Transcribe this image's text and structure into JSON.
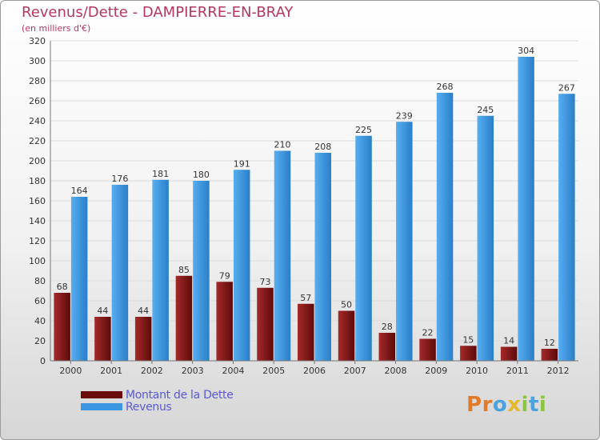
{
  "header": {
    "title": "Revenus/Dette - DAMPIERRE-EN-BRAY",
    "subtitle": "(en milliers d'€)"
  },
  "chart_data": {
    "type": "bar",
    "categories": [
      "2000",
      "2001",
      "2002",
      "2003",
      "2004",
      "2005",
      "2006",
      "2007",
      "2008",
      "2009",
      "2010",
      "2011",
      "2012"
    ],
    "series": [
      {
        "name": "Montant de la Dette",
        "color": "#8b1a1a",
        "values": [
          68,
          44,
          44,
          85,
          79,
          73,
          57,
          50,
          28,
          22,
          15,
          14,
          12
        ]
      },
      {
        "name": "Revenus",
        "color": "#3d97e0",
        "values": [
          164,
          176,
          181,
          180,
          191,
          210,
          208,
          225,
          239,
          268,
          245,
          304,
          267
        ]
      }
    ],
    "ylim": [
      0,
      320
    ],
    "yticks": [
      "0",
      "20",
      "40",
      "60",
      "80",
      "100",
      "120",
      "140",
      "160",
      "180",
      "200",
      "220",
      "240",
      "260",
      "280",
      "300",
      "320"
    ],
    "grid": true,
    "legend": "bottom-left"
  },
  "legend": {
    "items": [
      {
        "label": "Montant de la Dette",
        "color": "#6b0d0d"
      },
      {
        "label": "Revenus",
        "color": "#3d97e0"
      }
    ]
  },
  "logo": {
    "letters": [
      {
        "char": "P",
        "color": "#e07b2a"
      },
      {
        "char": "r",
        "color": "#e07b2a"
      },
      {
        "char": "o",
        "color": "#4aa3df"
      },
      {
        "char": "x",
        "color": "#e5b72a"
      },
      {
        "char": "i",
        "color": "#8cc63f"
      },
      {
        "char": "t",
        "color": "#4aa3df"
      },
      {
        "char": "i",
        "color": "#8cc63f"
      }
    ]
  }
}
